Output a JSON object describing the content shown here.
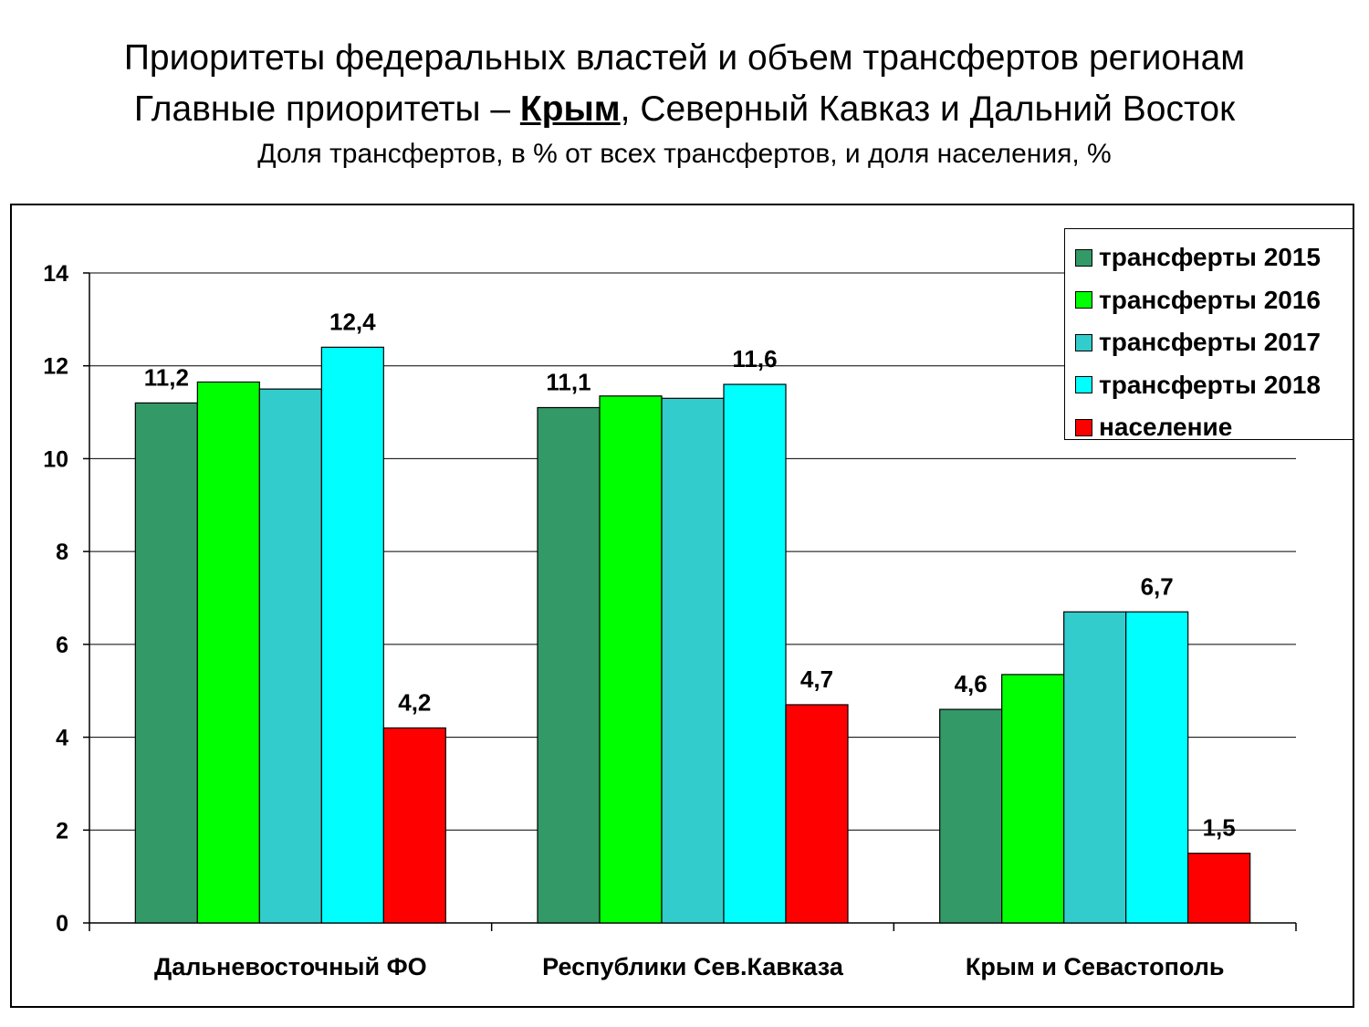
{
  "heading": {
    "line1": "Приоритеты федеральных властей и объем трансфертов регионам",
    "line2_prefix": "Главные приоритеты – ",
    "line2_emph": "Крым",
    "line2_suffix": ", Северный Кавказ и Дальний Восток",
    "line3": "Доля трансфертов, в % от всех трансфертов, и доля населения, %"
  },
  "chart_data": {
    "type": "bar",
    "categories": [
      "Дальневосточный ФО",
      "Республики Сев.Кавказа",
      "Крым и Севастополь"
    ],
    "series": [
      {
        "name": "трансферты 2015",
        "color": "#339966",
        "values": [
          11.2,
          11.1,
          4.6
        ]
      },
      {
        "name": "трансферты 2016",
        "color": "#00ff00",
        "values": [
          11.65,
          11.35,
          5.35
        ]
      },
      {
        "name": "трансферты 2017",
        "color": "#33cccc",
        "values": [
          11.5,
          11.3,
          6.7
        ]
      },
      {
        "name": "трансферты 2018",
        "color": "#00ffff",
        "values": [
          12.4,
          11.6,
          6.7
        ]
      },
      {
        "name": "население",
        "color": "#ff0000",
        "values": [
          4.2,
          4.7,
          1.5
        ]
      }
    ],
    "data_labels": [
      [
        "11,2",
        "",
        "",
        "12,4",
        "4,2"
      ],
      [
        "11,1",
        "",
        "",
        "11,6",
        "4,7"
      ],
      [
        "4,6",
        "",
        "",
        "6,7",
        "1,5"
      ]
    ],
    "yticks": [
      "0",
      "2",
      "4",
      "6",
      "8",
      "10",
      "12",
      "14"
    ],
    "ylim": [
      0,
      14
    ],
    "grid": true,
    "legend_position": "top-right",
    "xlabel": "",
    "ylabel": ""
  }
}
